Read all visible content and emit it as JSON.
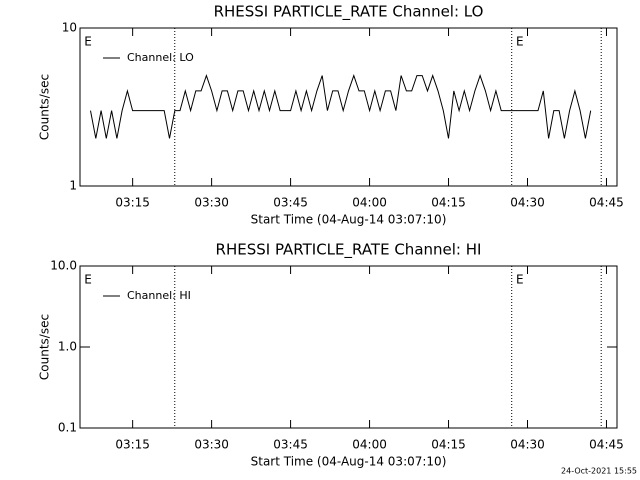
{
  "chart_data": [
    {
      "type": "line",
      "title": "RHESSI PARTICLE_RATE Channel: LO",
      "x_label": "Start Time (04-Aug-14 03:07:10)",
      "y_label": "Counts/sec",
      "log_y": true,
      "ylim": [
        1,
        10
      ],
      "yticks": [
        1,
        10
      ],
      "xlim": [
        "03:05",
        "04:47"
      ],
      "xticks": [
        "03:15",
        "03:30",
        "03:45",
        "04:00",
        "04:15",
        "04:30",
        "04:45"
      ],
      "vlines": [
        "03:23",
        "04:27",
        "04:44"
      ],
      "annotations": [
        {
          "text": "E",
          "x": "03:06"
        },
        {
          "text": "E",
          "x": "04:28"
        }
      ],
      "x": [
        "03:07",
        "03:08",
        "03:09",
        "03:10",
        "03:11",
        "03:12",
        "03:13",
        "03:14",
        "03:15",
        "03:16",
        "03:17",
        "03:18",
        "03:19",
        "03:20",
        "03:21",
        "03:22",
        "03:23",
        "03:24",
        "03:25",
        "03:26",
        "03:27",
        "03:28",
        "03:29",
        "03:30",
        "03:31",
        "03:32",
        "03:33",
        "03:34",
        "03:35",
        "03:36",
        "03:37",
        "03:38",
        "03:39",
        "03:40",
        "03:41",
        "03:42",
        "03:43",
        "03:44",
        "03:45",
        "03:46",
        "03:47",
        "03:48",
        "03:49",
        "03:50",
        "03:51",
        "03:52",
        "03:53",
        "03:54",
        "03:55",
        "03:56",
        "03:57",
        "03:58",
        "03:59",
        "04:00",
        "04:01",
        "04:02",
        "04:03",
        "04:04",
        "04:05",
        "04:06",
        "04:07",
        "04:08",
        "04:09",
        "04:10",
        "04:11",
        "04:12",
        "04:13",
        "04:14",
        "04:15",
        "04:16",
        "04:17",
        "04:18",
        "04:19",
        "04:20",
        "04:21",
        "04:22",
        "04:23",
        "04:24",
        "04:25",
        "04:26",
        "04:27",
        "04:28",
        "04:29",
        "04:30",
        "04:31",
        "04:32",
        "04:33",
        "04:34",
        "04:35",
        "04:36",
        "04:37",
        "04:38",
        "04:39",
        "04:40",
        "04:41",
        "04:42"
      ],
      "series": [
        {
          "name": "Channel: LO",
          "color": "#000000",
          "values": [
            3,
            2,
            3,
            2,
            3,
            2,
            3,
            4,
            3,
            3,
            3,
            3,
            3,
            3,
            3,
            2,
            3,
            3,
            4,
            3,
            4,
            4,
            5,
            4,
            3,
            4,
            4,
            3,
            4,
            4,
            3,
            4,
            3,
            4,
            3,
            4,
            3,
            3,
            3,
            4,
            3,
            4,
            3,
            4,
            5,
            3,
            4,
            4,
            3,
            4,
            5,
            4,
            4,
            3,
            4,
            3,
            4,
            4,
            3,
            5,
            4,
            4,
            5,
            5,
            4,
            5,
            4,
            3,
            2,
            4,
            3,
            4,
            3,
            4,
            5,
            4,
            3,
            4,
            3,
            3,
            3,
            3,
            3,
            3,
            3,
            3,
            4,
            2,
            3,
            3,
            2,
            3,
            4,
            3,
            2,
            3
          ]
        }
      ]
    },
    {
      "type": "line",
      "title": "RHESSI PARTICLE_RATE Channel: HI",
      "x_label": "Start Time (04-Aug-14 03:07:10)",
      "y_label": "Counts/sec",
      "log_y": true,
      "ylim": [
        0.1,
        10
      ],
      "yticks": [
        {
          "value": 0.1,
          "label": "0.1"
        },
        {
          "value": 1,
          "label": "1.0"
        },
        {
          "value": 10,
          "label": "10.0"
        }
      ],
      "xlim": [
        "03:05",
        "04:47"
      ],
      "xticks": [
        "03:15",
        "03:30",
        "03:45",
        "04:00",
        "04:15",
        "04:30",
        "04:45"
      ],
      "vlines": [
        "03:23",
        "04:27",
        "04:44"
      ],
      "annotations": [
        {
          "text": "E",
          "x": "03:06"
        },
        {
          "text": "E",
          "x": "04:28"
        }
      ],
      "x": [],
      "series": [
        {
          "name": "Channel: HI",
          "color": "#000000",
          "values": []
        }
      ]
    }
  ],
  "footer": "24-Oct-2021 15:55"
}
